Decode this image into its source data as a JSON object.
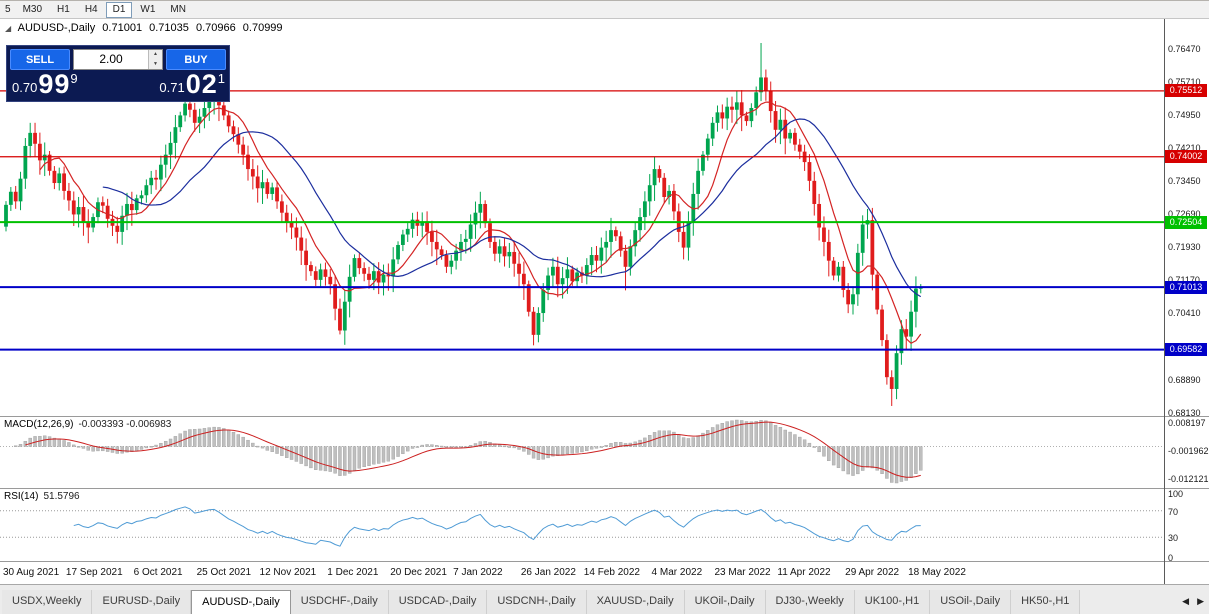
{
  "icons": {
    "corner": "◢",
    "spinner_up": "▲",
    "spinner_down": "▼",
    "scroll_left": "◀",
    "scroll_right": "▶"
  },
  "toolbar": {
    "timeframes": [
      "5",
      "M30",
      "H1",
      "H4",
      "D1",
      "W1",
      "MN"
    ],
    "active": "D1"
  },
  "header": {
    "symbol": "AUDUSD-,Daily",
    "open": "0.71001",
    "high": "0.71035",
    "low": "0.70966",
    "close": "0.70999"
  },
  "trade_panel": {
    "sell_label": "SELL",
    "buy_label": "BUY",
    "volume": "2.00",
    "sell_price_small": "0.70",
    "sell_price_big": "99",
    "sell_price_sup": "9",
    "buy_price_small": "0.71",
    "buy_price_big": "02",
    "buy_price_sup": "1"
  },
  "tab_bar": {
    "tabs": [
      "USDX,Weekly",
      "EURUSD-,Daily",
      "AUDUSD-,Daily",
      "USDCHF-,Daily",
      "USDCAD-,Daily",
      "USDCNH-,Daily",
      "XAUUSD-,Daily",
      "UKOil-,Daily",
      "DJ30-,Weekly",
      "UK100-,H1",
      "USOil-,Daily",
      "HK50-,H1"
    ],
    "active": "AUDUSD-,Daily"
  },
  "chart_data": {
    "type": "candlestick",
    "title": "AUDUSD-,Daily",
    "x": {
      "labels": [
        "30 Aug 2021",
        "17 Sep 2021",
        "6 Oct 2021",
        "25 Oct 2021",
        "12 Nov 2021",
        "1 Dec 2021",
        "20 Dec 2021",
        "7 Jan 2022",
        "26 Jan 2022",
        "14 Feb 2022",
        "4 Mar 2022",
        "23 Mar 2022",
        "11 Apr 2022",
        "29 Apr 2022",
        "18 May 2022"
      ],
      "indices": [
        0,
        13,
        27,
        40,
        53,
        67,
        80,
        93,
        107,
        120,
        134,
        147,
        160,
        174,
        187
      ]
    },
    "y_axis": {
      "ticks": [
        "0.76470",
        "0.75710",
        "0.74950",
        "0.74210",
        "0.73450",
        "0.72690",
        "0.71930",
        "0.71170",
        "0.70410",
        "0.69650",
        "0.68890",
        "0.68130"
      ]
    },
    "scale": {
      "max": 0.7716,
      "min": 0.6806
    },
    "first_open": 0.724,
    "closes": [
      0.729,
      0.732,
      0.7298,
      0.735,
      0.7425,
      0.7455,
      0.743,
      0.7392,
      0.7405,
      0.7368,
      0.734,
      0.7362,
      0.7322,
      0.73,
      0.7268,
      0.7285,
      0.7252,
      0.7238,
      0.7262,
      0.7296,
      0.7288,
      0.7258,
      0.7242,
      0.7228,
      0.7265,
      0.7292,
      0.7278,
      0.7305,
      0.7312,
      0.7335,
      0.7352,
      0.7348,
      0.7382,
      0.7405,
      0.7432,
      0.7468,
      0.7495,
      0.7522,
      0.7508,
      0.7478,
      0.7492,
      0.7512,
      0.753,
      0.7536,
      0.7518,
      0.7495,
      0.747,
      0.7452,
      0.7428,
      0.7405,
      0.7372,
      0.7355,
      0.7328,
      0.7342,
      0.7315,
      0.733,
      0.7298,
      0.7272,
      0.725,
      0.7238,
      0.7215,
      0.7185,
      0.7152,
      0.7138,
      0.7118,
      0.7142,
      0.7125,
      0.7108,
      0.7052,
      0.7002,
      0.7068,
      0.7125,
      0.7168,
      0.7145,
      0.7132,
      0.7118,
      0.7138,
      0.7112,
      0.713,
      0.7126,
      0.7165,
      0.7198,
      0.7222,
      0.7235,
      0.7256,
      0.7242,
      0.7252,
      0.7228,
      0.7205,
      0.7188,
      0.7175,
      0.7148,
      0.7162,
      0.7185,
      0.7205,
      0.7212,
      0.7245,
      0.7272,
      0.7292,
      0.7248,
      0.7205,
      0.7178,
      0.7195,
      0.7172,
      0.7182,
      0.7155,
      0.7132,
      0.7108,
      0.7045,
      0.6992,
      0.7042,
      0.7095,
      0.7128,
      0.7148,
      0.7108,
      0.7122,
      0.7142,
      0.7115,
      0.7135,
      0.7128,
      0.7152,
      0.7175,
      0.7162,
      0.7192,
      0.7205,
      0.7232,
      0.7218,
      0.7185,
      0.7148,
      0.7195,
      0.7232,
      0.7262,
      0.7298,
      0.7335,
      0.7372,
      0.7352,
      0.7308,
      0.7322,
      0.7275,
      0.7228,
      0.7192,
      0.7252,
      0.7315,
      0.7368,
      0.7405,
      0.7442,
      0.7478,
      0.7502,
      0.7488,
      0.7515,
      0.7508,
      0.7525,
      0.7495,
      0.7482,
      0.7512,
      0.7548,
      0.7582,
      0.7552,
      0.7505,
      0.7462,
      0.7485,
      0.7442,
      0.7455,
      0.7428,
      0.7412,
      0.7388,
      0.7345,
      0.7292,
      0.7238,
      0.7205,
      0.7162,
      0.7128,
      0.7148,
      0.7095,
      0.7062,
      0.7085,
      0.718,
      0.7245,
      0.7255,
      0.713,
      0.705,
      0.698,
      0.6895,
      0.6868,
      0.695,
      0.7005,
      0.6988,
      0.7045,
      0.7098,
      0.71
    ],
    "wick_overrides": {
      "5": {
        "high": 0.7478
      },
      "43": {
        "high": 0.7549
      },
      "69": {
        "low": 0.6993
      },
      "109": {
        "low": 0.6968
      },
      "128": {
        "low": 0.7094
      },
      "140": {
        "low": 0.7165
      },
      "156": {
        "high": 0.7661
      },
      "177": {
        "high": 0.7266
      },
      "183": {
        "low": 0.6829
      }
    },
    "h_lines": [
      {
        "value": 0.75512,
        "label": "0.75512",
        "color": "#d60000",
        "width": 1.2
      },
      {
        "value": 0.74002,
        "label": "0.74002",
        "color": "#d60000",
        "width": 1.2
      },
      {
        "value": 0.72504,
        "label": "0.72504",
        "color": "#00c000",
        "width": 2
      },
      {
        "value": 0.71013,
        "label": "0.71013",
        "color": "#0000c8",
        "width": 2
      },
      {
        "value": 0.69582,
        "label": "0.69582",
        "color": "#0000c8",
        "width": 2
      }
    ],
    "moving_averages": [
      {
        "period": 8,
        "color": "#d42424"
      },
      {
        "period": 21,
        "color": "#1c2e9e"
      }
    ],
    "candle_colors": {
      "up": "#00a54f",
      "down": "#e01c1c"
    },
    "indicators": {
      "macd": {
        "name": "MACD(12,26,9)",
        "values": "-0.003393 -0.006983",
        "fast": 12,
        "slow": 26,
        "signal": 9,
        "axis_labels": [
          "0.008197",
          "-0.001962",
          "-0.012121"
        ],
        "hist_color": "#bfbfbf",
        "signal_color": "#cc2020"
      },
      "rsi": {
        "name": "RSI(14)",
        "value": "51.5796",
        "period": 14,
        "axis_labels": [
          "100",
          "70",
          "30",
          "0"
        ],
        "levels": [
          70,
          30
        ],
        "color": "#4f9bd5"
      }
    }
  }
}
